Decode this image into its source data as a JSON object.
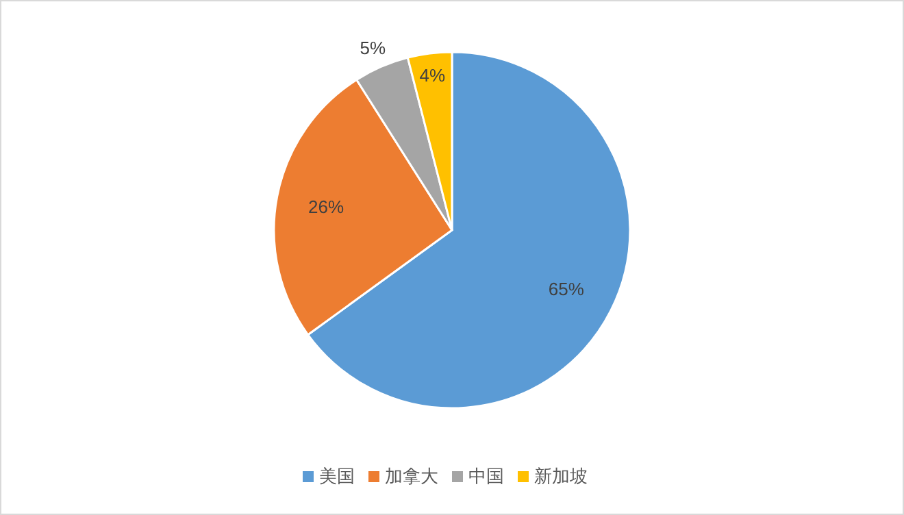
{
  "chart_data": {
    "type": "pie",
    "categories": [
      "美国",
      "加拿大",
      "中国",
      "新加坡"
    ],
    "values": [
      65,
      26,
      5,
      4
    ],
    "colors": [
      "#5b9bd5",
      "#ed7d31",
      "#a5a5a5",
      "#ffc000"
    ],
    "value_labels": [
      "65%",
      "26%",
      "5%",
      "4%"
    ],
    "legend": "bottom"
  }
}
